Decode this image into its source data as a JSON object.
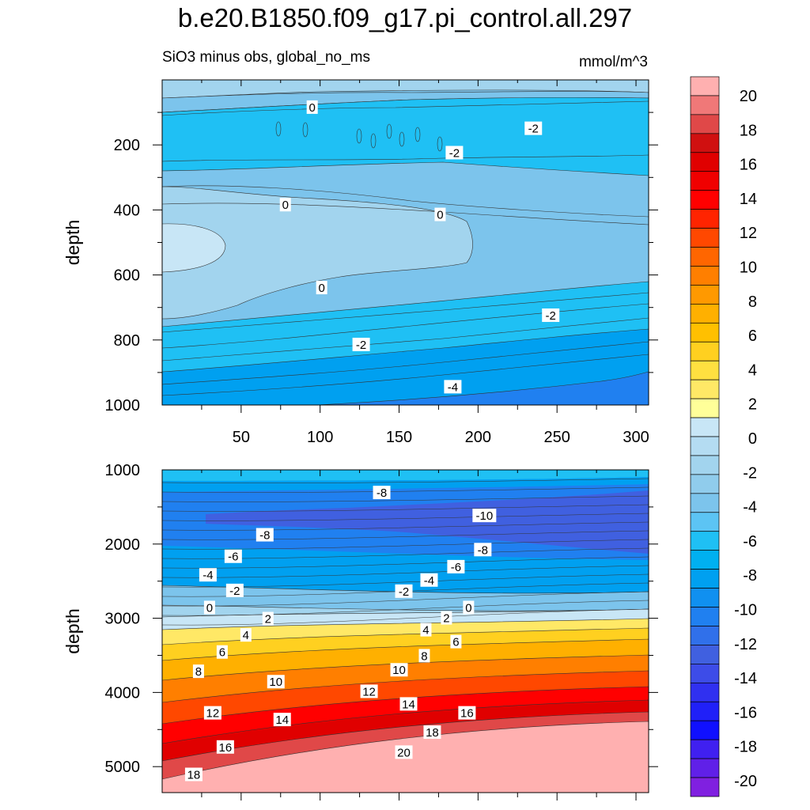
{
  "title": "b.e20.B1850.f09_g17.pi_control.all.297",
  "subtitle": "SiO3 minus obs, global_no_ms",
  "units": "mmol/m^3",
  "chart_data": [
    {
      "type": "contour",
      "panel": "upper",
      "xlabel": "",
      "ylabel": "depth",
      "xlim": [
        0,
        308
      ],
      "ylim": [
        0,
        1000
      ],
      "y_reversed": true,
      "xticks": [
        50,
        100,
        150,
        200,
        250,
        300
      ],
      "yticks": [
        200,
        400,
        600,
        800,
        1000
      ],
      "contour_labels": [
        {
          "x": 95,
          "y": 85,
          "text": "0"
        },
        {
          "x": 235,
          "y": 150,
          "text": "-2"
        },
        {
          "x": 185,
          "y": 225,
          "text": "-2"
        },
        {
          "x": 78,
          "y": 385,
          "text": "0"
        },
        {
          "x": 176,
          "y": 415,
          "text": "0"
        },
        {
          "x": 101,
          "y": 640,
          "text": "0"
        },
        {
          "x": 246,
          "y": 725,
          "text": "-2"
        },
        {
          "x": 126,
          "y": 815,
          "text": "-2"
        },
        {
          "x": 184,
          "y": 945,
          "text": "-4"
        }
      ]
    },
    {
      "type": "contour",
      "panel": "lower",
      "xlabel": "",
      "ylabel": "depth",
      "xlim": [
        0,
        308
      ],
      "ylim": [
        1000,
        5350
      ],
      "y_reversed": true,
      "yticks": [
        1000,
        2000,
        3000,
        4000,
        5000
      ],
      "contour_labels": [
        {
          "x": 139,
          "y": 1310,
          "text": "-8"
        },
        {
          "x": 204,
          "y": 1620,
          "text": "-10"
        },
        {
          "x": 65,
          "y": 1880,
          "text": "-8"
        },
        {
          "x": 203,
          "y": 2080,
          "text": "-8"
        },
        {
          "x": 45,
          "y": 2170,
          "text": "-6"
        },
        {
          "x": 186,
          "y": 2310,
          "text": "-6"
        },
        {
          "x": 29,
          "y": 2420,
          "text": "-4"
        },
        {
          "x": 169,
          "y": 2490,
          "text": "-4"
        },
        {
          "x": 46,
          "y": 2630,
          "text": "-2"
        },
        {
          "x": 153,
          "y": 2640,
          "text": "-2"
        },
        {
          "x": 30,
          "y": 2860,
          "text": "0"
        },
        {
          "x": 194,
          "y": 2860,
          "text": "0"
        },
        {
          "x": 67,
          "y": 3010,
          "text": "2"
        },
        {
          "x": 180,
          "y": 3000,
          "text": "2"
        },
        {
          "x": 53,
          "y": 3230,
          "text": "4"
        },
        {
          "x": 167,
          "y": 3160,
          "text": "4"
        },
        {
          "x": 186,
          "y": 3320,
          "text": "6"
        },
        {
          "x": 38,
          "y": 3460,
          "text": "6"
        },
        {
          "x": 166,
          "y": 3510,
          "text": "8"
        },
        {
          "x": 23,
          "y": 3720,
          "text": "8"
        },
        {
          "x": 150,
          "y": 3700,
          "text": "10"
        },
        {
          "x": 72,
          "y": 3860,
          "text": "10"
        },
        {
          "x": 131,
          "y": 3990,
          "text": "12"
        },
        {
          "x": 32,
          "y": 4280,
          "text": "12"
        },
        {
          "x": 156,
          "y": 4160,
          "text": "14"
        },
        {
          "x": 76,
          "y": 4370,
          "text": "14"
        },
        {
          "x": 193,
          "y": 4280,
          "text": "16"
        },
        {
          "x": 40,
          "y": 4740,
          "text": "16"
        },
        {
          "x": 171,
          "y": 4540,
          "text": "18"
        },
        {
          "x": 20,
          "y": 5110,
          "text": "18"
        },
        {
          "x": 153,
          "y": 4810,
          "text": "20"
        }
      ]
    }
  ],
  "colorbar": {
    "levels": [
      "20",
      "18",
      "16",
      "14",
      "12",
      "10",
      "8",
      "6",
      "4",
      "2",
      "0",
      "-2",
      "-4",
      "-6",
      "-8",
      "-10",
      "-12",
      "-14",
      "-16",
      "-18",
      "-20"
    ],
    "colors": [
      "#ffb0b0",
      "#f07878",
      "#e04848",
      "#d01010",
      "#e00000",
      "#f00000",
      "#ff0000",
      "#ff2400",
      "#ff4800",
      "#ff6600",
      "#ff7f00",
      "#ff9900",
      "#ffb000",
      "#ffc000",
      "#ffd020",
      "#ffe040",
      "#ffe866",
      "#ffff99",
      "#c8e6f6",
      "#b4dcf2",
      "#a2d4ee",
      "#90ccec",
      "#7cc4ec",
      "#5cc4f4",
      "#1fc0f4",
      "#00b0f0",
      "#00a0f0",
      "#1090f0",
      "#2080f0",
      "#3070ea",
      "#4060e0",
      "#3d4ce8",
      "#3030f0",
      "#2020f8",
      "#1010ff",
      "#4020f0",
      "#6020e8",
      "#8020e0"
    ]
  }
}
